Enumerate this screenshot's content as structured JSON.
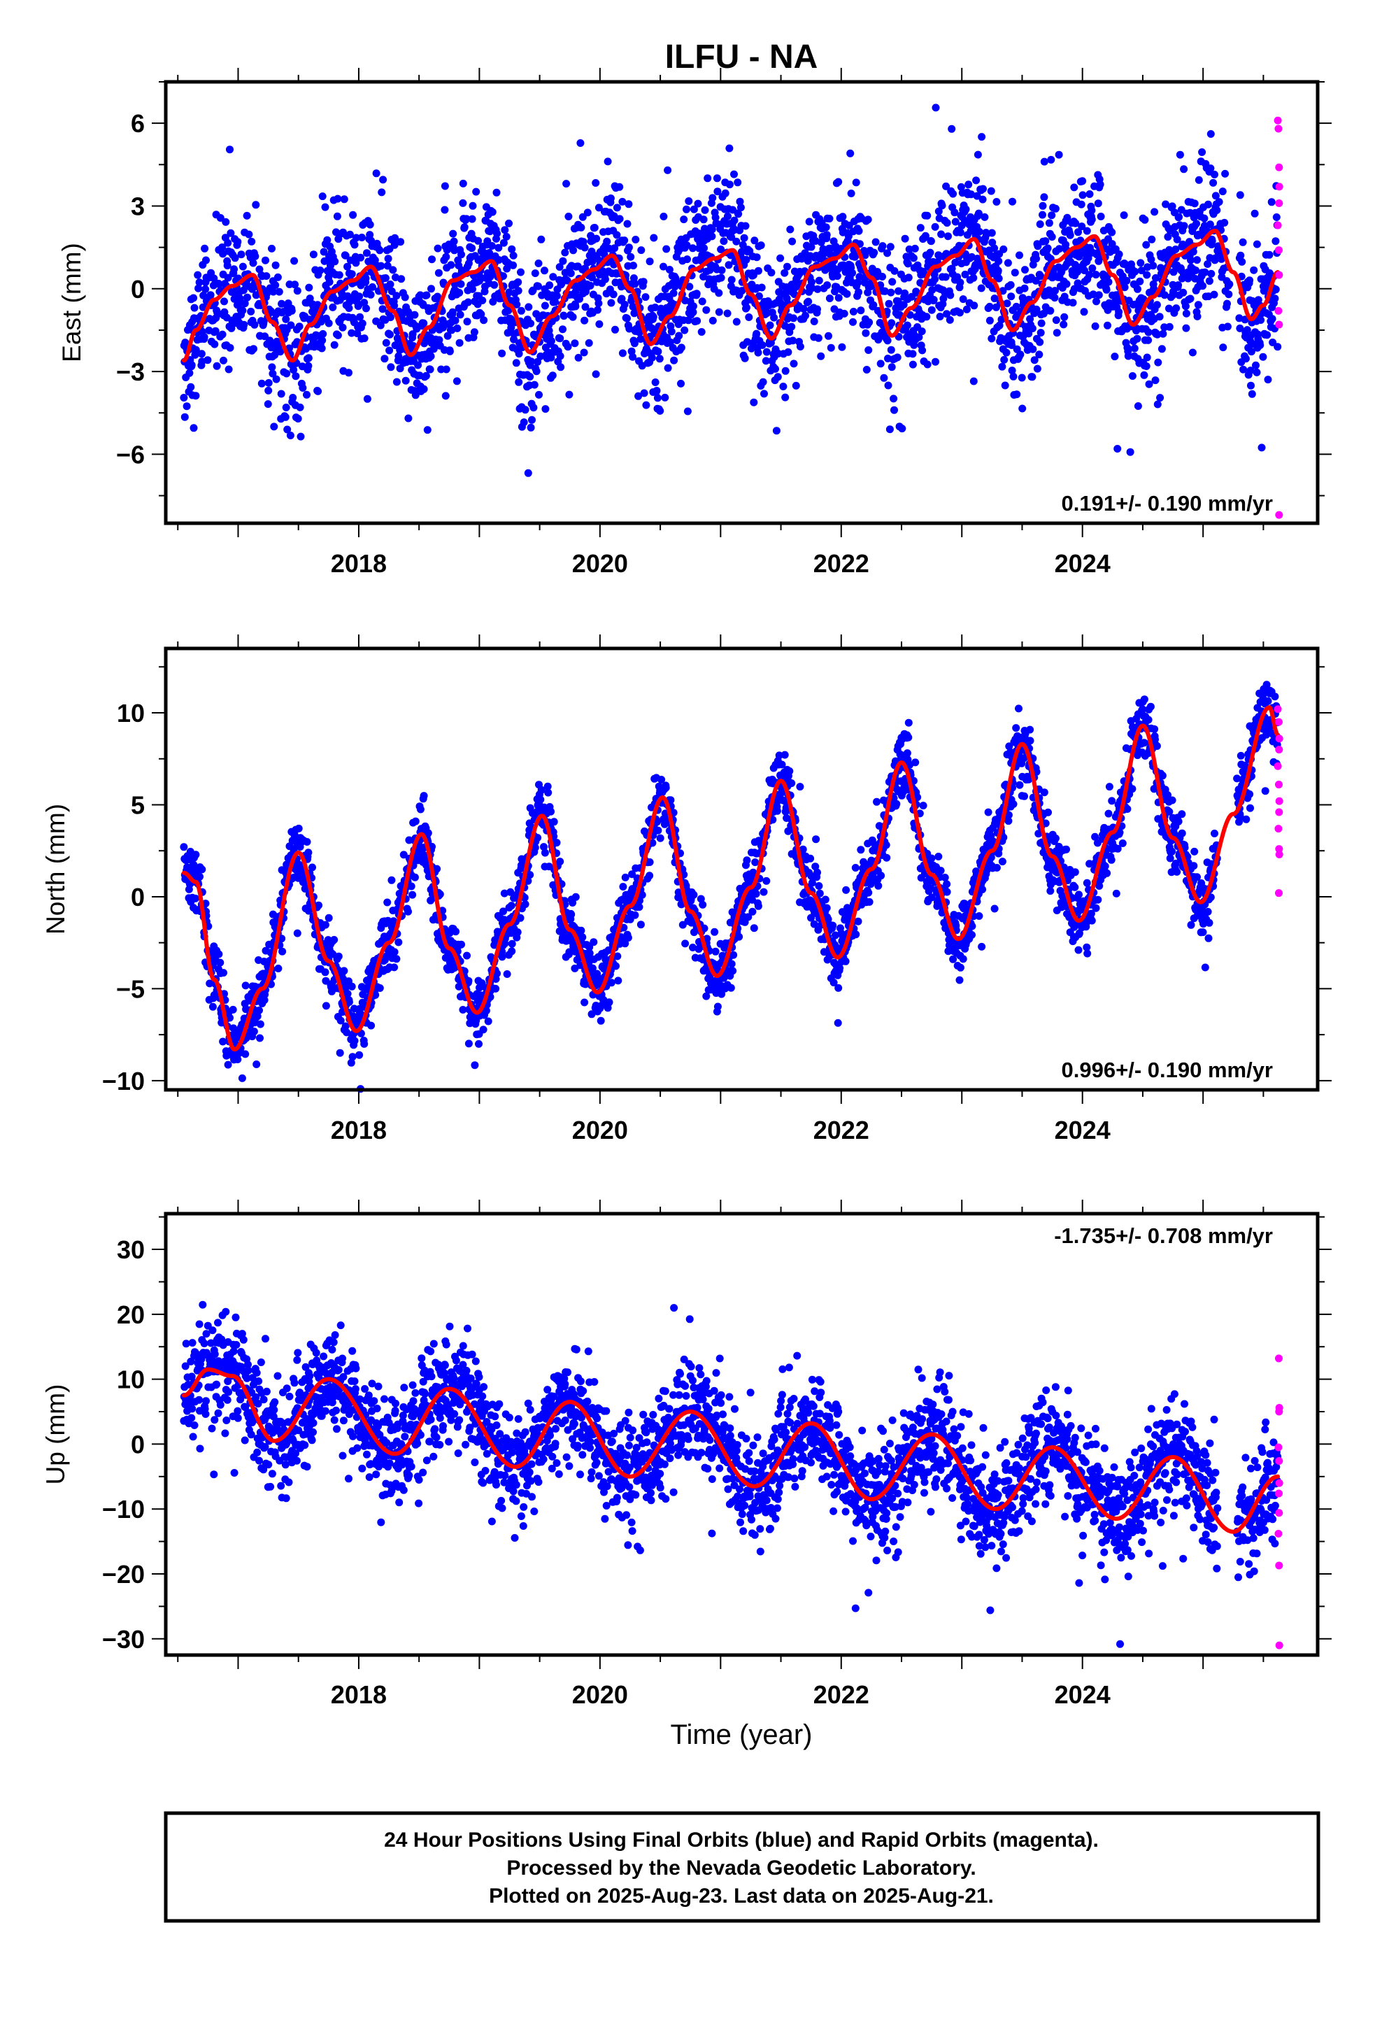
{
  "title": "ILFU - NA",
  "x_axis_label": "Time (year)",
  "footer": {
    "line1": "24 Hour Positions Using Final Orbits (blue) and Rapid Orbits (magenta).",
    "line2": "Processed by the Nevada Geodetic Laboratory.",
    "line3": "Plotted on 2025-Aug-23. Last data on 2025-Aug-21."
  },
  "colors": {
    "final": "#0000ff",
    "rapid": "#ff00ff",
    "model": "#ff0000",
    "frame": "#000000"
  },
  "chart_data": [
    {
      "type": "scatter",
      "panel": "east",
      "ylabel": "East (mm)",
      "rate_label": "0.191+/- 0.190 mm/yr",
      "rate_position": "bottom-right",
      "xlim": [
        2016.4,
        2025.95
      ],
      "ylim": [
        -8.5,
        7.5
      ],
      "xticks": [
        2018,
        2020,
        2022,
        2024
      ],
      "yticks": [
        -6,
        -3,
        0,
        3,
        6
      ],
      "x_start": 2016.55,
      "x_end": 2025.62,
      "gaps": [
        [
          2025.22,
          2025.3
        ]
      ],
      "trend": {
        "intercept": -1.3,
        "slope": 0.191,
        "ref_year": 2016.55
      },
      "model_anchors": [
        [
          2016.55,
          -2.6
        ],
        [
          2016.65,
          -1.5
        ],
        [
          2016.8,
          -0.4
        ],
        [
          2016.95,
          0.1
        ],
        [
          2017.12,
          0.5
        ],
        [
          2017.28,
          -1.2
        ],
        [
          2017.45,
          -2.6
        ],
        [
          2017.6,
          -1.3
        ],
        [
          2017.78,
          -0.1
        ],
        [
          2017.95,
          0.3
        ],
        [
          2018.1,
          0.8
        ],
        [
          2018.28,
          -0.8
        ],
        [
          2018.43,
          -2.4
        ],
        [
          2018.58,
          -1.4
        ],
        [
          2018.78,
          0.3
        ],
        [
          2018.95,
          0.6
        ],
        [
          2019.1,
          1.0
        ],
        [
          2019.25,
          -0.6
        ],
        [
          2019.42,
          -2.3
        ],
        [
          2019.6,
          -1.0
        ],
        [
          2019.8,
          0.3
        ],
        [
          2019.95,
          0.7
        ],
        [
          2020.1,
          1.2
        ],
        [
          2020.25,
          0.0
        ],
        [
          2020.42,
          -2.0
        ],
        [
          2020.58,
          -1.0
        ],
        [
          2020.78,
          0.7
        ],
        [
          2020.95,
          1.1
        ],
        [
          2021.1,
          1.4
        ],
        [
          2021.25,
          -0.2
        ],
        [
          2021.42,
          -1.8
        ],
        [
          2021.58,
          -0.6
        ],
        [
          2021.78,
          0.8
        ],
        [
          2021.95,
          1.1
        ],
        [
          2022.1,
          1.6
        ],
        [
          2022.25,
          0.4
        ],
        [
          2022.42,
          -1.7
        ],
        [
          2022.58,
          -0.7
        ],
        [
          2022.78,
          0.8
        ],
        [
          2022.95,
          1.2
        ],
        [
          2023.1,
          1.8
        ],
        [
          2023.25,
          0.3
        ],
        [
          2023.42,
          -1.5
        ],
        [
          2023.58,
          -0.5
        ],
        [
          2023.78,
          1.0
        ],
        [
          2023.95,
          1.5
        ],
        [
          2024.1,
          1.9
        ],
        [
          2024.25,
          0.5
        ],
        [
          2024.42,
          -1.3
        ],
        [
          2024.58,
          -0.3
        ],
        [
          2024.78,
          1.2
        ],
        [
          2024.95,
          1.6
        ],
        [
          2025.1,
          2.1
        ],
        [
          2025.25,
          0.6
        ],
        [
          2025.4,
          -1.1
        ],
        [
          2025.5,
          -0.6
        ],
        [
          2025.62,
          0.6
        ]
      ],
      "scatter_sigma": 1.3,
      "rapid_points": [
        [
          2025.62,
          6.1
        ],
        [
          2025.625,
          5.8
        ],
        [
          2025.63,
          4.4
        ],
        [
          2025.632,
          3.7
        ],
        [
          2025.63,
          3.1
        ],
        [
          2025.62,
          2.3
        ],
        [
          2025.628,
          1.4
        ],
        [
          2025.63,
          0.5
        ],
        [
          2025.625,
          -0.8
        ],
        [
          2025.63,
          -1.3
        ],
        [
          2025.63,
          -8.2
        ]
      ]
    },
    {
      "type": "scatter",
      "panel": "north",
      "ylabel": "North (mm)",
      "rate_label": "0.996+/- 0.190 mm/yr",
      "rate_position": "bottom-right",
      "xlim": [
        2016.4,
        2025.95
      ],
      "ylim": [
        -10.5,
        13.5
      ],
      "xticks": [
        2018,
        2020,
        2022,
        2024
      ],
      "yticks": [
        -10,
        -5,
        0,
        5,
        10
      ],
      "x_start": 2016.55,
      "x_end": 2025.62,
      "gaps": [
        [
          2025.12,
          2025.28
        ]
      ],
      "trend": {
        "intercept": -3.0,
        "slope": 0.996,
        "ref_year": 2016.55
      },
      "model_anchors": [
        [
          2016.55,
          1.3
        ],
        [
          2016.65,
          0.8
        ],
        [
          2016.8,
          -4.5
        ],
        [
          2016.97,
          -8.3
        ],
        [
          2017.2,
          -5.0
        ],
        [
          2017.5,
          2.4
        ],
        [
          2017.75,
          -3.5
        ],
        [
          2017.98,
          -7.3
        ],
        [
          2018.25,
          -2.5
        ],
        [
          2018.52,
          3.4
        ],
        [
          2018.75,
          -2.8
        ],
        [
          2018.98,
          -6.3
        ],
        [
          2019.25,
          -1.5
        ],
        [
          2019.52,
          4.4
        ],
        [
          2019.75,
          -1.8
        ],
        [
          2019.98,
          -5.2
        ],
        [
          2020.25,
          -0.5
        ],
        [
          2020.52,
          5.4
        ],
        [
          2020.75,
          -0.8
        ],
        [
          2020.97,
          -4.3
        ],
        [
          2021.25,
          0.5
        ],
        [
          2021.5,
          6.3
        ],
        [
          2021.75,
          0.2
        ],
        [
          2021.97,
          -3.3
        ],
        [
          2022.25,
          1.5
        ],
        [
          2022.5,
          7.3
        ],
        [
          2022.75,
          1.2
        ],
        [
          2022.97,
          -2.3
        ],
        [
          2023.25,
          2.5
        ],
        [
          2023.5,
          8.3
        ],
        [
          2023.75,
          2.2
        ],
        [
          2023.97,
          -1.3
        ],
        [
          2024.25,
          3.5
        ],
        [
          2024.5,
          9.3
        ],
        [
          2024.75,
          3.2
        ],
        [
          2024.98,
          -0.3
        ],
        [
          2025.25,
          4.5
        ],
        [
          2025.55,
          10.3
        ],
        [
          2025.62,
          8.8
        ]
      ],
      "scatter_sigma": 0.9,
      "rapid_points": [
        [
          2025.62,
          10.2
        ],
        [
          2025.628,
          9.5
        ],
        [
          2025.632,
          8.6
        ],
        [
          2025.63,
          8.0
        ],
        [
          2025.62,
          7.1
        ],
        [
          2025.628,
          6.1
        ],
        [
          2025.632,
          5.2
        ],
        [
          2025.63,
          4.6
        ],
        [
          2025.625,
          3.7
        ],
        [
          2025.63,
          2.6
        ],
        [
          2025.632,
          2.3
        ],
        [
          2025.628,
          0.2
        ]
      ]
    },
    {
      "type": "scatter",
      "panel": "up",
      "ylabel": "Up (mm)",
      "rate_label": "-1.735+/- 0.708 mm/yr",
      "rate_position": "top-right",
      "xlim": [
        2016.4,
        2025.95
      ],
      "ylim": [
        -32.5,
        35.5
      ],
      "xticks": [
        2018,
        2020,
        2022,
        2024
      ],
      "yticks": [
        -30,
        -20,
        -10,
        0,
        10,
        20,
        30
      ],
      "x_start": 2016.55,
      "x_end": 2025.62,
      "gaps": [
        [
          2025.12,
          2025.28
        ]
      ],
      "trend": {
        "intercept": 5.0,
        "slope": -1.735,
        "ref_year": 2016.55
      },
      "model_anchors": [
        [
          2016.55,
          7.5
        ],
        [
          2016.75,
          11.5
        ],
        [
          2016.95,
          10.5
        ],
        [
          2017.3,
          0.5
        ],
        [
          2017.75,
          10.0
        ],
        [
          2018.3,
          -1.5
        ],
        [
          2018.75,
          8.5
        ],
        [
          2019.3,
          -3.5
        ],
        [
          2019.75,
          6.5
        ],
        [
          2020.25,
          -5.0
        ],
        [
          2020.75,
          5.0
        ],
        [
          2021.28,
          -6.5
        ],
        [
          2021.75,
          3.2
        ],
        [
          2022.25,
          -8.5
        ],
        [
          2022.75,
          1.5
        ],
        [
          2023.28,
          -10.0
        ],
        [
          2023.75,
          -0.5
        ],
        [
          2024.28,
          -11.5
        ],
        [
          2024.75,
          -2.0
        ],
        [
          2025.25,
          -13.5
        ],
        [
          2025.62,
          -5.0
        ]
      ],
      "scatter_sigma": 4.0,
      "rapid_points": [
        [
          2025.628,
          13.2
        ],
        [
          2025.632,
          5.6
        ],
        [
          2025.63,
          5.0
        ],
        [
          2025.625,
          -0.5
        ],
        [
          2025.63,
          -2.6
        ],
        [
          2025.632,
          -6.0
        ],
        [
          2025.628,
          -7.6
        ],
        [
          2025.63,
          -10.6
        ],
        [
          2025.625,
          -13.8
        ],
        [
          2025.63,
          -18.7
        ],
        [
          2025.632,
          -31.0
        ]
      ]
    }
  ]
}
